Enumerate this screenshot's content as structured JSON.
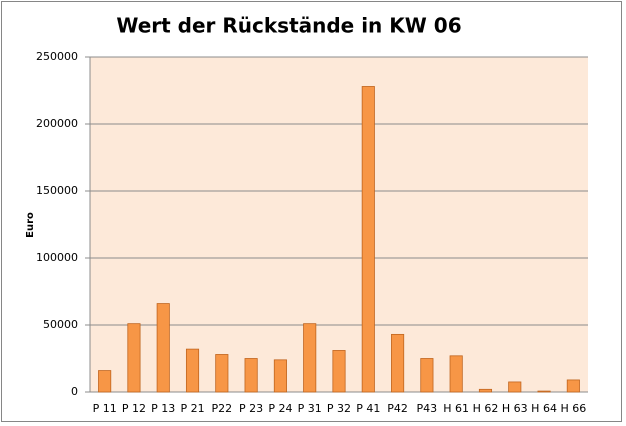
{
  "chart_data": {
    "type": "bar",
    "title": "Wert der Rückstände in KW 06",
    "y_label": "Euro",
    "categories": [
      "P 11",
      "P 12",
      "P 13",
      "P 21",
      "P22",
      "P 23",
      "P 24",
      "P 31",
      "P 32",
      "P 41",
      "P42",
      "P43",
      "H 61",
      "H 62",
      "H 63",
      "H 64",
      "H 66"
    ],
    "values": [
      16000,
      51000,
      66000,
      32000,
      28000,
      25000,
      24000,
      51000,
      31000,
      228000,
      43000,
      25000,
      27000,
      2000,
      7500,
      700,
      9000
    ],
    "color": "#f79646",
    "ylim": [
      0,
      250000
    ],
    "yticks": [
      0,
      50000,
      100000,
      150000,
      200000,
      250000
    ],
    "grid": true
  }
}
